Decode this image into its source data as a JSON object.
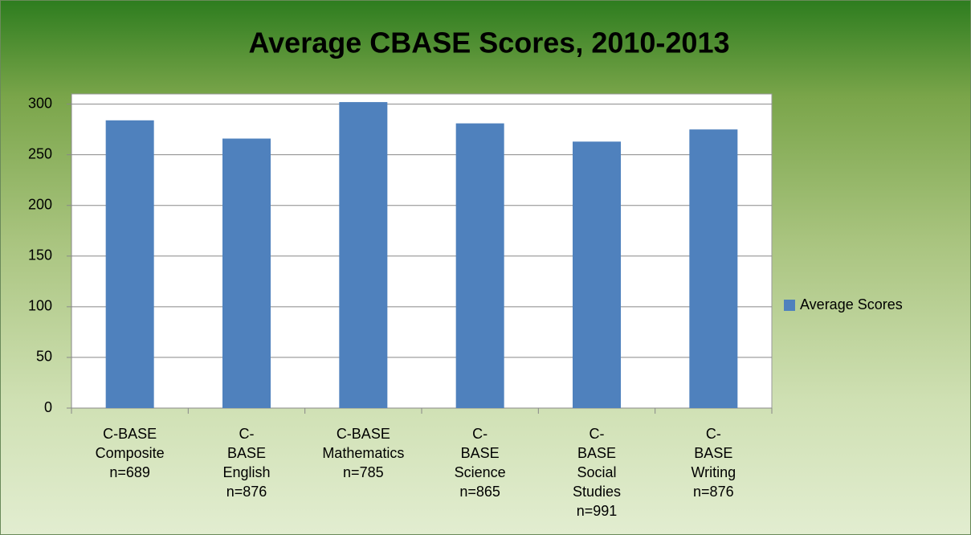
{
  "chart_data": {
    "type": "bar",
    "title": "Average CBASE Scores, 2010-2013",
    "categories": [
      "C-BASE Composite n=689",
      "C-BASE English n=876",
      "C-BASE Mathematics n=785",
      "C-BASE Science n=865",
      "C-BASE Social Studies n=991",
      "C-BASE Writing n=876"
    ],
    "series": [
      {
        "name": "Average Scores",
        "color": "#4f81bd",
        "values": [
          284,
          266,
          302,
          281,
          263,
          275
        ]
      }
    ],
    "ylim": [
      0,
      310
    ],
    "yticks": [
      0,
      50,
      100,
      150,
      200,
      250,
      300
    ],
    "grid": true,
    "legend": "right"
  }
}
